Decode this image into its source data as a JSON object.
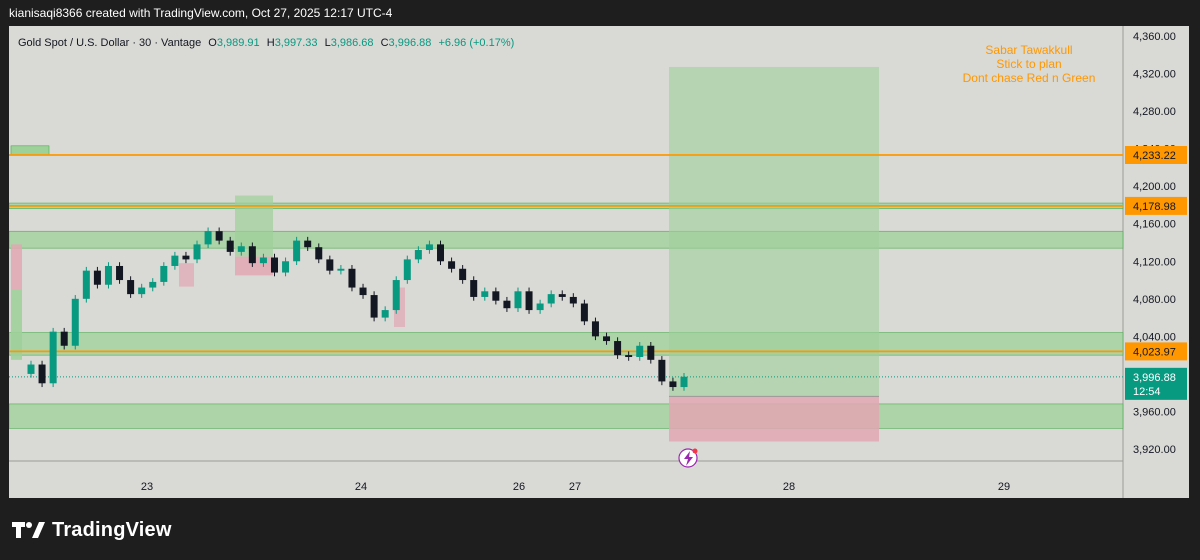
{
  "header": {
    "attribution": "kianisaqi8366 created with TradingView.com, Oct 27, 2025 12:17 UTC-4"
  },
  "symbol": {
    "name": "Gold Spot / U.S. Dollar · 30 · Vantage",
    "open_label": "O",
    "open": "3,989.91",
    "high_label": "H",
    "high": "3,997.33",
    "low_label": "L",
    "low": "3,986.68",
    "close_label": "C",
    "close": "3,996.88",
    "change": "+6.96 (+0.17%)"
  },
  "note": {
    "lines": [
      "Sabar Tawakkull",
      "Stick to plan",
      "Dont chase Red n Green"
    ]
  },
  "footer": {
    "brand": "TradingView"
  },
  "colors": {
    "background": "#d9d9d5",
    "up": "#089981",
    "down": "#131722",
    "zone_fill": "#9ed09a",
    "zone_border": "#4caf50",
    "level_line": "#ff9800",
    "loss_fill": "#e2a7b3",
    "profit_fill": "#9ed09a",
    "last_price": "#089981",
    "note_text": "#ff9800"
  },
  "chart_data": {
    "type": "candlestick",
    "symbol": "XAUUSD",
    "timeframe": "30",
    "y_axis": {
      "range": [
        3900,
        4370
      ],
      "ticks": [
        "3,920.00",
        "3,960.00",
        "4,000.00",
        "4,040.00",
        "4,080.00",
        "4,120.00",
        "4,160.00",
        "4,200.00",
        "4,240.00",
        "4,280.00",
        "4,320.00",
        "4,360.00"
      ]
    },
    "x_axis": {
      "ticks": [
        "23",
        "24",
        "26",
        "27",
        "28",
        "29"
      ]
    },
    "price_levels": [
      {
        "label": "4,233.22",
        "value": 4233.22
      },
      {
        "label": "4,178.98",
        "value": 4178.98
      },
      {
        "label": "4,023.97",
        "value": 4023.97
      }
    ],
    "last_price": {
      "label": "3,996.88",
      "countdown": "12:54",
      "value": 3996.88
    },
    "zones": [
      {
        "top": 4182,
        "bottom": 4176
      },
      {
        "top": 4152,
        "bottom": 4134
      },
      {
        "top": 4044,
        "bottom": 4020
      },
      {
        "top": 3968,
        "bottom": 3942
      }
    ],
    "series": [
      {
        "name": "close",
        "values": [
          4010,
          3990,
          4045,
          4030,
          4080,
          4110,
          4095,
          4115,
          4100,
          4085,
          4092,
          4098,
          4115,
          4126,
          4122,
          4138,
          4152,
          4142,
          4130,
          4136,
          4118,
          4124,
          4108,
          4120,
          4142,
          4135,
          4122,
          4110,
          4112,
          4092,
          4084,
          4060,
          4068,
          4100,
          4122,
          4132,
          4138,
          4120,
          4112,
          4100,
          4082,
          4088,
          4078,
          4070,
          4088,
          4068,
          4075,
          4085,
          4082,
          4075,
          4056,
          4040,
          4035,
          4020,
          4018,
          4030,
          4015,
          3992,
          3986,
          3997
        ]
      }
    ]
  }
}
